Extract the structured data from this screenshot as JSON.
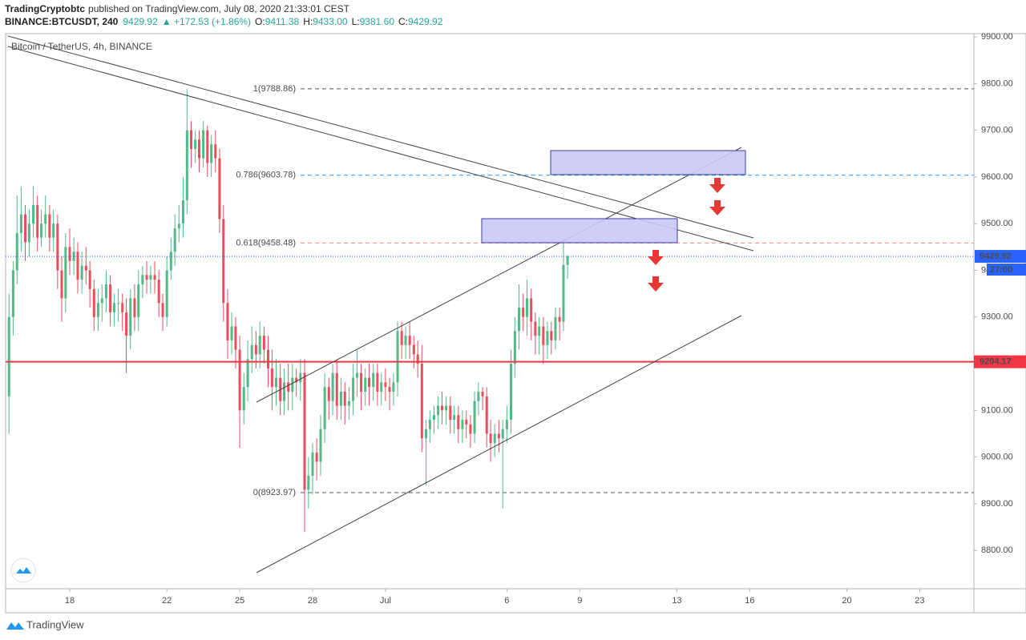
{
  "header": {
    "author": "TradingCryptobtc",
    "published": "published on TradingView.com, July 08, 2020 21:33:01 CEST",
    "symbol": "BINANCE:BTCUSDT, 240",
    "price": "9429.92",
    "change": "▲ +172.53 (+1.86%)",
    "ohlc": [
      {
        "label": "O:",
        "value": "9411.38"
      },
      {
        "label": "H:",
        "value": "9433.00"
      },
      {
        "label": "L:",
        "value": "9381.60"
      },
      {
        "label": "C:",
        "value": "9429.92"
      }
    ]
  },
  "footer": {
    "brand": "TradingView"
  },
  "chart_data": {
    "type": "candlestick",
    "title": "Bitcoin / TetherUS, 4h, BINANCE",
    "up_color": "#53b987",
    "down_color": "#eb4d5c",
    "x": [
      15.5,
      15.67,
      15.83,
      16,
      16.17,
      16.33,
      16.5,
      16.67,
      16.83,
      17,
      17.17,
      17.33,
      17.5,
      17.67,
      17.83,
      18,
      18.17,
      18.33,
      18.5,
      18.67,
      18.83,
      19,
      19.17,
      19.33,
      19.5,
      19.67,
      19.83,
      20,
      20.17,
      20.33,
      20.5,
      20.67,
      20.83,
      21,
      21.17,
      21.33,
      21.5,
      21.67,
      21.83,
      22,
      22.17,
      22.33,
      22.5,
      22.67,
      22.83,
      23,
      23.17,
      23.33,
      23.5,
      23.67,
      23.83,
      24,
      24.17,
      24.33,
      24.5,
      24.67,
      24.83,
      25,
      25.17,
      25.33,
      25.5,
      25.67,
      25.83,
      26,
      26.17,
      26.33,
      26.5,
      26.67,
      26.83,
      27,
      27.17,
      27.33,
      27.5,
      27.67,
      27.83,
      28,
      28.17,
      28.33,
      28.5,
      28.67,
      28.83,
      29,
      29.17,
      29.33,
      29.5,
      29.67,
      29.83,
      30,
      30.17,
      30.33,
      30.5,
      30.67,
      30.83,
      31,
      31.17,
      31.33,
      31.5,
      31.67,
      31.83,
      32,
      32.17,
      32.33,
      32.5,
      32.67,
      32.83,
      33,
      33.17,
      33.33,
      33.5,
      33.67,
      33.83,
      34,
      34.17,
      34.33,
      34.5,
      34.67,
      34.83,
      35,
      35.17,
      35.33,
      35.5,
      35.67,
      35.83,
      36,
      36.17,
      36.33,
      36.5,
      36.67,
      36.83,
      37,
      37.17,
      37.33,
      37.5,
      37.67,
      37.83,
      38,
      38.17,
      38.33,
      38.5
    ],
    "open": [
      9130,
      9300,
      9400,
      9480,
      9520,
      9460,
      9500,
      9540,
      9470,
      9500,
      9520,
      9470,
      9500,
      9400,
      9340,
      9450,
      9420,
      9440,
      9380,
      9410,
      9400,
      9360,
      9300,
      9330,
      9340,
      9370,
      9310,
      9330,
      9330,
      9310,
      9260,
      9340,
      9300,
      9370,
      9390,
      9380,
      9390,
      9380,
      9330,
      9300,
      9400,
      9440,
      9490,
      9500,
      9550,
      9700,
      9660,
      9680,
      9640,
      9700,
      9630,
      9670,
      9640,
      9510,
      9330,
      9250,
      9280,
      9230,
      9100,
      9150,
      9210,
      9240,
      9220,
      9260,
      9230,
      9190,
      9150,
      9170,
      9120,
      9160,
      9140,
      9170,
      9160,
      9180,
      8930,
      8960,
      9010,
      8990,
      9060,
      9150,
      9120,
      9180,
      9110,
      9140,
      9110,
      9120,
      9170,
      9180,
      9140,
      9170,
      9150,
      9180,
      9140,
      9160,
      9150,
      9140,
      9160,
      9270,
      9240,
      9260,
      9240,
      9220,
      9200,
      9040,
      9060,
      9080,
      9090,
      9110,
      9100,
      9110,
      9080,
      9090,
      9060,
      9080,
      9070,
      9050,
      9120,
      9140,
      9130,
      9050,
      9030,
      9050,
      9040,
      9060,
      9080,
      9200,
      9270,
      9320,
      9300,
      9340,
      9290,
      9260,
      9280,
      9240,
      9270,
      9250,
      9300,
      9290,
      9411.38
    ],
    "high": [
      9350,
      9420,
      9560,
      9580,
      9540,
      9530,
      9580,
      9560,
      9530,
      9560,
      9540,
      9530,
      9520,
      9430,
      9480,
      9490,
      9470,
      9460,
      9440,
      9450,
      9420,
      9380,
      9360,
      9370,
      9400,
      9390,
      9350,
      9360,
      9350,
      9340,
      9360,
      9370,
      9400,
      9410,
      9420,
      9410,
      9420,
      9400,
      9350,
      9430,
      9470,
      9520,
      9540,
      9600,
      9788.86,
      9720,
      9700,
      9700,
      9720,
      9710,
      9690,
      9700,
      9660,
      9540,
      9360,
      9310,
      9300,
      9260,
      9180,
      9250,
      9280,
      9270,
      9290,
      9280,
      9260,
      9230,
      9210,
      9200,
      9190,
      9200,
      9200,
      9190,
      9210,
      9210,
      9000,
      9030,
      9040,
      9090,
      9180,
      9170,
      9200,
      9210,
      9170,
      9160,
      9150,
      9200,
      9230,
      9200,
      9190,
      9200,
      9200,
      9200,
      9180,
      9190,
      9170,
      9180,
      9290,
      9290,
      9280,
      9290,
      9260,
      9250,
      9240,
      9080,
      9100,
      9110,
      9130,
      9140,
      9130,
      9130,
      9110,
      9110,
      9100,
      9100,
      9090,
      9140,
      9160,
      9150,
      9150,
      9080,
      9070,
      9080,
      9080,
      9110,
      9230,
      9300,
      9370,
      9350,
      9380,
      9360,
      9310,
      9300,
      9300,
      9290,
      9290,
      9320,
      9320,
      9467,
      9433
    ],
    "low": [
      9050,
      9260,
      9370,
      9440,
      9420,
      9430,
      9470,
      9440,
      9450,
      9470,
      9440,
      9440,
      9360,
      9290,
      9310,
      9390,
      9390,
      9350,
      9350,
      9370,
      9320,
      9270,
      9270,
      9290,
      9310,
      9280,
      9280,
      9290,
      9270,
      9180,
      9230,
      9270,
      9270,
      9340,
      9350,
      9350,
      9350,
      9300,
      9270,
      9280,
      9380,
      9410,
      9460,
      9470,
      9520,
      9620,
      9630,
      9610,
      9620,
      9600,
      9600,
      9610,
      9480,
      9290,
      9210,
      9220,
      9190,
      9020,
      9070,
      9120,
      9180,
      9190,
      9190,
      9200,
      9150,
      9100,
      9110,
      9090,
      9090,
      9100,
      9100,
      9130,
      9120,
      8840,
      8890,
      8920,
      8950,
      8960,
      9030,
      9080,
      9090,
      9080,
      9080,
      9070,
      9080,
      9090,
      9130,
      9100,
      9110,
      9110,
      9120,
      9110,
      9110,
      9120,
      9100,
      9110,
      9130,
      9210,
      9210,
      9210,
      9190,
      9170,
      9010,
      8940,
      9030,
      9050,
      9060,
      9070,
      9070,
      9050,
      9050,
      9030,
      9030,
      9040,
      9020,
      9030,
      9090,
      9100,
      9020,
      8990,
      9000,
      9010,
      8890,
      9030,
      9050,
      9170,
      9230,
      9270,
      9260,
      9250,
      9220,
      9220,
      9200,
      9210,
      9220,
      9230,
      9250,
      9270,
      9381.6
    ],
    "close": [
      9300,
      9400,
      9480,
      9520,
      9460,
      9500,
      9540,
      9470,
      9500,
      9520,
      9470,
      9500,
      9400,
      9340,
      9450,
      9420,
      9440,
      9380,
      9410,
      9400,
      9360,
      9300,
      9330,
      9340,
      9370,
      9310,
      9330,
      9330,
      9310,
      9260,
      9340,
      9300,
      9370,
      9390,
      9380,
      9390,
      9380,
      9330,
      9300,
      9400,
      9440,
      9490,
      9500,
      9550,
      9700,
      9660,
      9680,
      9640,
      9700,
      9630,
      9670,
      9640,
      9510,
      9330,
      9250,
      9280,
      9230,
      9100,
      9150,
      9210,
      9240,
      9220,
      9260,
      9230,
      9190,
      9150,
      9170,
      9120,
      9160,
      9140,
      9170,
      9160,
      9180,
      8930,
      8960,
      9010,
      8990,
      9060,
      9150,
      9120,
      9180,
      9110,
      9140,
      9110,
      9120,
      9170,
      9180,
      9140,
      9170,
      9150,
      9180,
      9140,
      9160,
      9150,
      9140,
      9160,
      9270,
      9240,
      9260,
      9240,
      9220,
      9200,
      9040,
      9060,
      9080,
      9090,
      9110,
      9100,
      9110,
      9080,
      9090,
      9060,
      9080,
      9070,
      9050,
      9120,
      9140,
      9130,
      9050,
      9030,
      9050,
      9040,
      9060,
      9080,
      9200,
      9270,
      9320,
      9300,
      9340,
      9290,
      9260,
      9280,
      9240,
      9270,
      9250,
      9300,
      9290,
      9411.38,
      9429.92
    ],
    "xlim": [
      15.36,
      55.23
    ],
    "ylim": [
      8718,
      9907
    ],
    "xticks": [
      18,
      22,
      25,
      28,
      {
        "value": 31,
        "label": "Jul"
      },
      {
        "value": 36,
        "label": "6"
      },
      {
        "value": 39,
        "label": "9"
      },
      {
        "value": 43,
        "label": "13"
      },
      {
        "value": 46,
        "label": "16"
      },
      {
        "value": 50,
        "label": "20"
      },
      {
        "value": 53,
        "label": "23"
      }
    ],
    "yticks": [
      {
        "value": 8800,
        "label": "8800.00"
      },
      {
        "value": 8900,
        "label": "8900.00"
      },
      {
        "value": 9000,
        "label": "9000.00"
      },
      {
        "value": 9100,
        "label": "9100.00"
      },
      {
        "value": 9200,
        "label": "9200.00"
      },
      {
        "value": 9300,
        "label": "9300.00"
      },
      {
        "value": 9400,
        "label": "9400.00"
      },
      {
        "value": 9500,
        "label": "9500.00"
      },
      {
        "value": 9600,
        "label": "9600.00"
      },
      {
        "value": 9700,
        "label": "9700.00"
      },
      {
        "value": 9800,
        "label": "9800.00"
      },
      {
        "value": 9900,
        "label": "9900.00"
      }
    ],
    "fib_levels": [
      {
        "value": 9788.86,
        "label": "1(9788.86)",
        "color": "#555555"
      },
      {
        "value": 9603.78,
        "label": "0.786(9603.78)",
        "color": "#2196f3"
      },
      {
        "value": 9458.48,
        "label": "0.618(9458.48)",
        "color": "#f28b82"
      },
      {
        "value": 8923.97,
        "label": "0(8923.97)",
        "color": "#555555"
      }
    ],
    "support_line": {
      "value": 9204.17,
      "color": "#f23645"
    },
    "last_price": {
      "value": 9429.92,
      "color": "#2962ff",
      "countdown": "27:00"
    }
  }
}
